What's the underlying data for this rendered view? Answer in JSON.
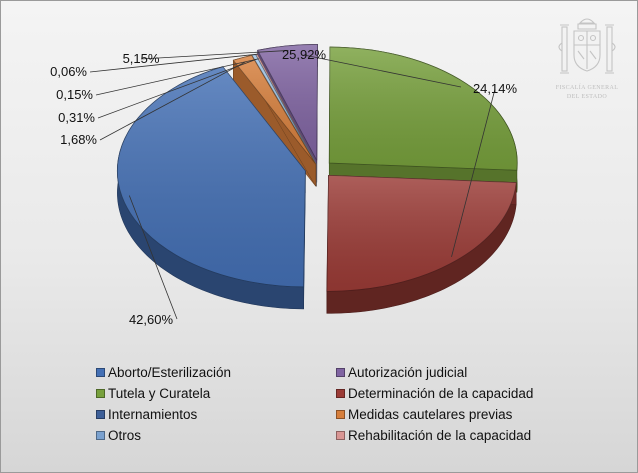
{
  "chart_data": {
    "type": "pie",
    "title": "",
    "series": [
      {
        "label": "Aborto/Esterilización",
        "value": 0.0,
        "label_text": "",
        "color": "#9ab4df"
      },
      {
        "label": "Autorización judicial",
        "value": 5.15,
        "label_text": "5,15%",
        "color": "#8064a2"
      },
      {
        "label": "Tutela y Curatela",
        "value": 25.92,
        "label_text": "25,92%",
        "color": "#77a03c"
      },
      {
        "label": "Determinación de la capacidad",
        "value": 24.14,
        "label_text": "24,14%",
        "color": "#9b3b36"
      },
      {
        "label": "Internamientos",
        "value": 42.6,
        "label_text": "42,60%",
        "color": "#4470b5"
      },
      {
        "label": "Medidas cautelares previas",
        "value": 1.68,
        "label_text": "1,68%",
        "color": "#d77f3c"
      },
      {
        "label": "Otros",
        "value": 0.31,
        "label_text": "0,31%",
        "color": "#9dc3e6"
      },
      {
        "label": "Rehabilitación de la capacidad",
        "value": 0.15,
        "label_text": "0,15%",
        "color": "#d99694"
      }
    ],
    "extra_labels": [
      "0,06%"
    ],
    "legend_position": "bottom"
  },
  "legend": {
    "items": [
      {
        "label": "Aborto/Esterilización",
        "color": "#4470b5"
      },
      {
        "label": "Autorización judicial",
        "color": "#8064a2"
      },
      {
        "label": "Tutela y Curatela",
        "color": "#77a03c"
      },
      {
        "label": "Determinación de la capacidad",
        "color": "#9b3b36"
      },
      {
        "label": "Internamientos",
        "color": "#3d5f98"
      },
      {
        "label": "Medidas cautelares previas",
        "color": "#d77f3c"
      },
      {
        "label": "Otros",
        "color": "#7aa1cf"
      },
      {
        "label": "Rehabilitación de la capacidad",
        "color": "#d99694"
      }
    ]
  },
  "emblem": {
    "line1": "FISCALÍA GENERAL",
    "line2": "DEL ESTADO",
    "icon": "coat-of-arms-icon"
  }
}
